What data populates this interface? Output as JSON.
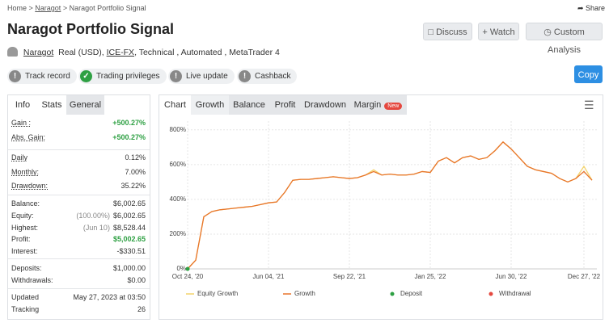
{
  "breadcrumb": [
    "Home",
    "Naragot",
    "Naragot Portfolio Signal"
  ],
  "share": "Share",
  "title": "Naragot Portfolio Signal",
  "buttons": [
    "Discuss",
    "Watch",
    "Custom Analysis"
  ],
  "info": {
    "user": "Naragot",
    "account": "Real (USD),",
    "broker": "ICE-FX",
    "details": ", Technical , Automated , MetaTrader 4"
  },
  "badges": [
    {
      "label": "Track record",
      "ok": false
    },
    {
      "label": "Trading privileges",
      "ok": true
    },
    {
      "label": "Live update",
      "ok": false
    },
    {
      "label": "Cashback",
      "ok": false
    }
  ],
  "copy": "Copy",
  "left_tabs": [
    "Info",
    "Stats",
    "General"
  ],
  "stats": [
    {
      "label": "Gain :",
      "value": "+500.27%",
      "highlight": true
    },
    {
      "label": "Abs. Gain:",
      "value": "+500.27%",
      "highlight": true
    },
    {
      "label": "Daily",
      "value": "0.12%"
    },
    {
      "label": "Monthly:",
      "value": "7.00%"
    },
    {
      "label": "Drawdown:",
      "value": "35.22%"
    },
    {
      "label": "Balance:",
      "value": "$6,002.65"
    },
    {
      "label": "Equity:",
      "value": "$6,002.65",
      "extra": "(100.00%)"
    },
    {
      "label": "Highest:",
      "value": "$8,528.44",
      "extra": "(Jun 10)"
    },
    {
      "label": "Profit:",
      "value": "$5,002.65",
      "highlight": true
    },
    {
      "label": "Interest:",
      "value": "-$330.51"
    },
    {
      "label": "Deposits:",
      "value": "$1,000.00"
    },
    {
      "label": "Withdrawals:",
      "value": "$0.00"
    },
    {
      "label": "Updated",
      "value": "May 27, 2023 at 03:50"
    },
    {
      "label": "Tracking",
      "value": "26"
    }
  ],
  "chart_tabs": [
    "Chart",
    "Growth",
    "Balance",
    "Profit",
    "Drawdown",
    "Margin"
  ],
  "new_badge": "New",
  "chart_data": {
    "type": "line",
    "categories": [
      "Oct 24, '20",
      null,
      null,
      null,
      null,
      null,
      null,
      null,
      null,
      null,
      "Jun 04, '21",
      null,
      null,
      null,
      null,
      null,
      null,
      null,
      null,
      null,
      "Sep 22, '21",
      null,
      null,
      null,
      null,
      null,
      null,
      null,
      null,
      null,
      "Jan 25, '22",
      null,
      null,
      null,
      null,
      null,
      null,
      null,
      null,
      null,
      "Jun 30, '22",
      null,
      null,
      null,
      null,
      null,
      null,
      null,
      null,
      "Dec 27, '22",
      null
    ],
    "series": [
      {
        "name": "Equity Growth",
        "color": "#f3d36b",
        "values": [
          0,
          50,
          300,
          330,
          340,
          345,
          350,
          355,
          360,
          370,
          380,
          385,
          440,
          510,
          515,
          515,
          520,
          525,
          530,
          525,
          520,
          525,
          540,
          570,
          540,
          545,
          540,
          540,
          545,
          560,
          555,
          620,
          640,
          610,
          640,
          650,
          630,
          640,
          680,
          730,
          690,
          640,
          590,
          570,
          560,
          550,
          520,
          500,
          520,
          590,
          510
        ]
      },
      {
        "name": "Growth",
        "color": "#e8742a",
        "values": [
          0,
          50,
          300,
          330,
          340,
          345,
          350,
          355,
          360,
          370,
          380,
          385,
          440,
          510,
          515,
          515,
          520,
          525,
          530,
          525,
          520,
          525,
          540,
          560,
          540,
          545,
          540,
          540,
          545,
          560,
          555,
          620,
          640,
          610,
          640,
          650,
          630,
          640,
          680,
          730,
          690,
          640,
          590,
          570,
          560,
          550,
          520,
          500,
          520,
          560,
          510
        ]
      },
      {
        "name": "Deposit",
        "color": "#2ea043",
        "values": [
          0,
          null,
          null,
          null,
          null,
          null,
          null,
          null,
          null,
          null,
          null,
          null,
          null,
          null,
          null,
          null,
          null,
          null,
          null,
          null,
          null,
          null,
          null,
          null,
          null,
          null,
          null,
          null,
          null,
          null,
          null,
          null,
          null,
          null,
          null,
          null,
          null,
          null,
          null,
          null,
          null,
          null,
          null,
          null,
          null,
          null,
          null,
          null,
          null,
          null,
          null
        ]
      },
      {
        "name": "Withdrawal",
        "color": "#e5483f",
        "values": [
          null,
          null,
          null,
          null,
          null,
          null,
          null,
          null,
          null,
          null,
          null,
          null,
          null,
          null,
          null,
          null,
          null,
          null,
          null,
          null,
          null,
          null,
          null,
          null,
          null,
          null,
          null,
          null,
          null,
          null,
          null,
          null,
          null,
          null,
          null,
          null,
          null,
          null,
          null,
          null,
          null,
          null,
          null,
          null,
          null,
          null,
          null,
          null,
          null,
          null,
          null
        ]
      }
    ],
    "ylim": [
      0,
      850
    ],
    "yticks": [
      {
        "value": 0,
        "label": "0%"
      },
      {
        "value": 200,
        "label": "200%"
      },
      {
        "value": 400,
        "label": "400%"
      },
      {
        "value": 600,
        "label": "600%"
      },
      {
        "value": 800,
        "label": "800%"
      }
    ],
    "grid": true
  }
}
